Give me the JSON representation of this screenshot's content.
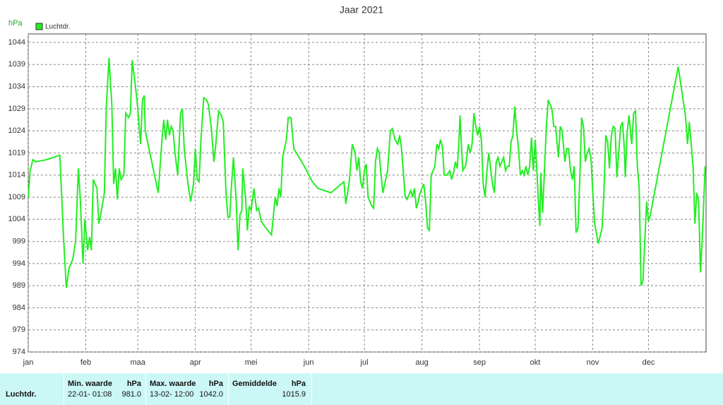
{
  "chart_data": {
    "type": "line",
    "title": "Jaar 2021",
    "y_label": "hPa",
    "xlim": [
      0,
      365
    ],
    "xticks": [
      {
        "value": 0,
        "label": "jan"
      },
      {
        "value": 31,
        "label": "feb"
      },
      {
        "value": 59,
        "label": "maa"
      },
      {
        "value": 90,
        "label": "apr"
      },
      {
        "value": 120,
        "label": "mei"
      },
      {
        "value": 151,
        "label": "jun"
      },
      {
        "value": 181,
        "label": "jul"
      },
      {
        "value": 212,
        "label": "aug"
      },
      {
        "value": 243,
        "label": "sep"
      },
      {
        "value": 273,
        "label": "okt"
      },
      {
        "value": 304,
        "label": "nov"
      },
      {
        "value": 334,
        "label": "dec"
      }
    ],
    "ylim": [
      974,
      1044
    ],
    "yticks": [
      974,
      979,
      984,
      989,
      994,
      999,
      1004,
      1009,
      1014,
      1019,
      1024,
      1029,
      1034,
      1039,
      1044
    ],
    "grid": true,
    "legend": "top-left",
    "x": [
      0,
      1,
      2.5,
      4,
      10,
      17,
      19,
      20.5,
      22,
      24,
      25.5,
      27,
      28,
      29.5,
      30.5,
      32,
      33,
      34,
      35,
      37,
      38,
      39,
      41,
      42,
      43.5,
      45,
      46,
      47,
      48,
      49,
      50,
      51.5,
      52.5,
      54,
      55,
      56,
      57.5,
      59,
      60.5,
      61.5,
      62.5,
      63,
      66,
      70,
      72,
      73,
      74,
      75,
      76,
      77,
      78,
      79,
      80.5,
      82,
      83,
      84,
      85,
      86,
      87.5,
      89,
      90,
      91,
      92,
      93,
      94.5,
      96,
      97,
      98.5,
      100,
      101,
      102.5,
      104,
      105,
      106.5,
      107.5,
      108.5,
      109.5,
      110.5,
      112,
      113,
      114,
      115,
      115.5,
      117,
      118,
      119,
      120,
      121.5,
      123,
      124,
      125.5,
      128,
      131,
      133,
      134,
      135,
      136,
      137,
      139,
      140,
      141.5,
      143,
      148,
      153,
      156,
      163,
      170,
      171,
      172,
      173,
      174.5,
      176,
      177,
      178,
      179,
      180,
      181,
      182,
      183,
      185,
      186,
      187,
      188,
      189,
      190,
      191,
      193.5,
      195,
      196,
      197.5,
      199,
      200,
      201,
      203,
      204,
      206,
      207,
      208,
      209,
      210,
      211,
      213,
      214,
      215,
      216,
      217,
      218,
      219,
      220,
      221,
      222,
      223,
      224,
      225.5,
      227,
      228,
      229,
      230,
      231,
      232,
      232.5,
      233,
      234,
      235.5,
      237,
      238,
      239,
      240,
      241,
      242,
      243,
      244,
      245,
      246,
      247,
      248,
      250,
      251,
      252,
      253,
      254,
      256,
      257,
      258,
      259,
      260,
      261,
      262,
      263,
      264,
      265,
      266,
      267,
      268,
      269,
      270,
      271,
      272,
      273,
      274,
      275,
      275.5,
      276,
      277,
      279,
      280,
      282,
      283,
      284,
      285.5,
      286.5,
      287.5,
      289,
      290,
      291,
      292,
      293,
      294,
      295,
      296,
      297,
      298,
      299,
      300,
      301,
      302,
      303,
      304,
      305,
      307,
      309,
      310,
      311,
      312,
      313,
      314,
      315,
      316,
      317,
      319,
      320,
      321,
      321.5,
      322.5,
      323.5,
      324.5,
      325,
      326,
      327,
      328,
      329,
      330,
      331,
      333,
      334,
      335,
      350,
      353,
      354,
      355,
      356,
      358,
      359,
      360,
      361,
      362,
      363,
      364.5
    ],
    "series": [
      {
        "name": "Luchtdr.",
        "color": "#22ee22",
        "values": [
          1009,
          1015,
          1017.5,
          1017,
          1017.5,
          1018.5,
          1000,
          988.5,
          993,
          995,
          999,
          1015.5,
          1009,
          994,
          1004,
          997,
          1000,
          997,
          1013,
          1011,
          1003,
          1005,
          1010,
          1029,
          1040.5,
          1030,
          1012,
          1015.5,
          1008.5,
          1015.5,
          1013,
          1014,
          1028,
          1027,
          1028,
          1040,
          1035,
          1029,
          1021,
          1031,
          1032,
          1024,
          1018,
          1010,
          1022,
          1026.5,
          1022,
          1026.5,
          1023,
          1025,
          1024,
          1019,
          1014,
          1028,
          1029,
          1020,
          1016,
          1012,
          1008,
          1012,
          1020,
          1013,
          1012.5,
          1022,
          1031.5,
          1031,
          1030,
          1025,
          1017,
          1021,
          1028.5,
          1027.5,
          1026,
          1010,
          1004.5,
          1004.5,
          1012,
          1018,
          1008,
          997,
          1005,
          1006,
          1015.5,
          1009,
          1001.5,
          1007,
          1006,
          1011,
          1006,
          1006.5,
          1003.5,
          1002,
          1000.5,
          1009,
          1007,
          1011,
          1009,
          1018,
          1022,
          1027,
          1027,
          1020,
          1016.5,
          1012.5,
          1011,
          1010,
          1012.5,
          1007.5,
          1010,
          1013,
          1021,
          1019,
          1015,
          1018,
          1012.5,
          1011,
          1015,
          1016.5,
          1009,
          1007,
          1006.5,
          1017,
          1020,
          1019,
          1014,
          1010,
          1015,
          1024,
          1024.5,
          1022,
          1021,
          1023,
          1020,
          1009,
          1008.5,
          1010.5,
          1009,
          1011,
          1006.5,
          1008,
          1010,
          1012,
          1008,
          1002,
          1001.5,
          1014,
          1015,
          1016,
          1021,
          1020,
          1022,
          1020.5,
          1014,
          1014,
          1015,
          1013,
          1014.5,
          1017,
          1015.5,
          1022,
          1027.5,
          1023,
          1015,
          1016,
          1021,
          1019,
          1021,
          1028,
          1025,
          1023,
          1025,
          1022,
          1012,
          1009,
          1015,
          1019,
          1012,
          1010,
          1017,
          1018,
          1016,
          1018,
          1015,
          1016,
          1016,
          1021.5,
          1023,
          1029.5,
          1024,
          1020,
          1014,
          1015,
          1014,
          1016,
          1014,
          1016,
          1022.5,
          1015,
          1022,
          1014,
          1006,
          1002.5,
          1014.5,
          1005.5,
          1025,
          1031,
          1029,
          1025,
          1025,
          1018,
          1025,
          1024,
          1017,
          1020,
          1020,
          1015,
          1013,
          1016,
          1001,
          1002,
          1013,
          1027,
          1025,
          1017,
          1019,
          1020,
          1018,
          1010,
          1003,
          998.5,
          1002,
          1010,
          1023,
          1021.5,
          1015.5,
          1023,
          1025,
          1024.5,
          1013.5,
          1025,
          1026,
          1020,
          1013.5,
          1023.5,
          1027.5,
          1023,
          1021,
          1028,
          1028.5,
          1016,
          1011,
          989,
          990,
          1008,
          1003.5,
          1005,
          1038.5,
          1030,
          1027,
          1021,
          1026,
          1016,
          1003,
          1010,
          1008,
          992,
          1000,
          1016
        ]
      }
    ]
  },
  "table": {
    "headers": [
      {
        "label": "Min. waarde",
        "unit": "hPa"
      },
      {
        "label": "Max. waarde",
        "unit": "hPa"
      },
      {
        "label": "Gemiddelde",
        "unit": "hPa"
      }
    ],
    "rows": [
      {
        "name": "Luchtdr.",
        "cells": [
          {
            "time": "22-01- 01:08",
            "value": "981.0"
          },
          {
            "time": "13-02- 12:00",
            "value": "1042.0"
          },
          {
            "time": "",
            "value": "1015.9"
          }
        ]
      }
    ]
  }
}
